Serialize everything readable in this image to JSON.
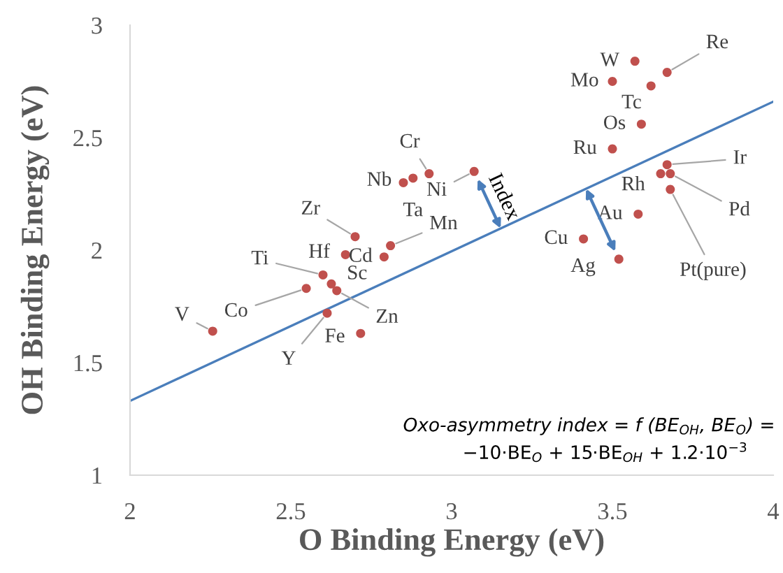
{
  "chart_data": {
    "type": "scatter",
    "xlabel": "O Binding Energy (eV)",
    "ylabel": "OH Binding Energy (eV)",
    "xlim": [
      2,
      4
    ],
    "ylim": [
      1,
      3
    ],
    "xticks": [
      2,
      2.5,
      3,
      3.5,
      4
    ],
    "yticks": [
      1,
      1.5,
      2,
      2.5,
      3
    ],
    "grid": false,
    "legend": false,
    "series": [
      {
        "marker": "circle",
        "color": "#c0504d",
        "x": [
          2.257,
          2.548,
          2.6,
          2.626,
          2.643,
          2.613,
          2.717,
          2.67,
          2.79,
          2.7,
          2.81,
          2.85,
          2.88,
          2.93,
          3.07,
          3.57,
          3.5,
          3.62,
          3.67,
          3.59,
          3.5,
          3.67,
          3.65,
          3.68,
          3.68,
          3.58,
          3.41,
          3.52
        ],
        "values": [
          1.64,
          1.83,
          1.89,
          1.85,
          1.82,
          1.72,
          1.63,
          1.98,
          1.97,
          2.06,
          2.02,
          2.3,
          2.32,
          2.34,
          2.35,
          2.84,
          2.75,
          2.73,
          2.79,
          2.56,
          2.45,
          2.38,
          2.34,
          2.34,
          2.27,
          2.16,
          2.05,
          1.96
        ]
      },
      {
        "type": "line",
        "color": "#4a7ebb",
        "x": [
          2,
          4
        ],
        "values": [
          1.33,
          2.66
        ]
      }
    ],
    "annotations": [
      {
        "text": "V",
        "x": 2.257,
        "y": 1.64
      },
      {
        "text": "Co",
        "x": 2.548,
        "y": 1.83
      },
      {
        "text": "Ti",
        "x": 2.6,
        "y": 1.89
      },
      {
        "text": "Sc",
        "x": 2.626,
        "y": 1.85
      },
      {
        "text": "Zn",
        "x": 2.643,
        "y": 1.82
      },
      {
        "text": "Y",
        "x": 2.613,
        "y": 1.72
      },
      {
        "text": "Fe",
        "x": 2.717,
        "y": 1.63
      },
      {
        "text": "Hf",
        "x": 2.67,
        "y": 1.98
      },
      {
        "text": "Cd",
        "x": 2.79,
        "y": 1.97
      },
      {
        "text": "Zr",
        "x": 2.7,
        "y": 2.06
      },
      {
        "text": "Mn",
        "x": 2.81,
        "y": 2.02
      },
      {
        "text": "Nb",
        "x": 2.85,
        "y": 2.3
      },
      {
        "text": "Ta",
        "x": 2.88,
        "y": 2.32
      },
      {
        "text": "Cr",
        "x": 2.93,
        "y": 2.34
      },
      {
        "text": "Ni",
        "x": 3.07,
        "y": 2.35
      },
      {
        "text": "W",
        "x": 3.57,
        "y": 2.84
      },
      {
        "text": "Mo",
        "x": 3.5,
        "y": 2.75
      },
      {
        "text": "Tc",
        "x": 3.62,
        "y": 2.73
      },
      {
        "text": "Re",
        "x": 3.67,
        "y": 2.79
      },
      {
        "text": "Os",
        "x": 3.59,
        "y": 2.56
      },
      {
        "text": "Ru",
        "x": 3.5,
        "y": 2.45
      },
      {
        "text": "Ir",
        "x": 3.67,
        "y": 2.38
      },
      {
        "text": "Rh",
        "x": 3.65,
        "y": 2.34
      },
      {
        "text": "Pd",
        "x": 3.68,
        "y": 2.34
      },
      {
        "text": "Pt(pure)",
        "x": 3.68,
        "y": 2.27
      },
      {
        "text": "Au",
        "x": 3.58,
        "y": 2.16
      },
      {
        "text": "Cu",
        "x": 3.41,
        "y": 2.05
      },
      {
        "text": "Ag",
        "x": 3.52,
        "y": 1.96
      },
      "Index",
      "Oxo-asymmetry index = f (BE$_{OH}$, BE$_{O}$) =",
      "−10·BE$_{O}$ + 15·BE$_{OH}$ + 1.2·10$^{−3}$"
    ]
  }
}
